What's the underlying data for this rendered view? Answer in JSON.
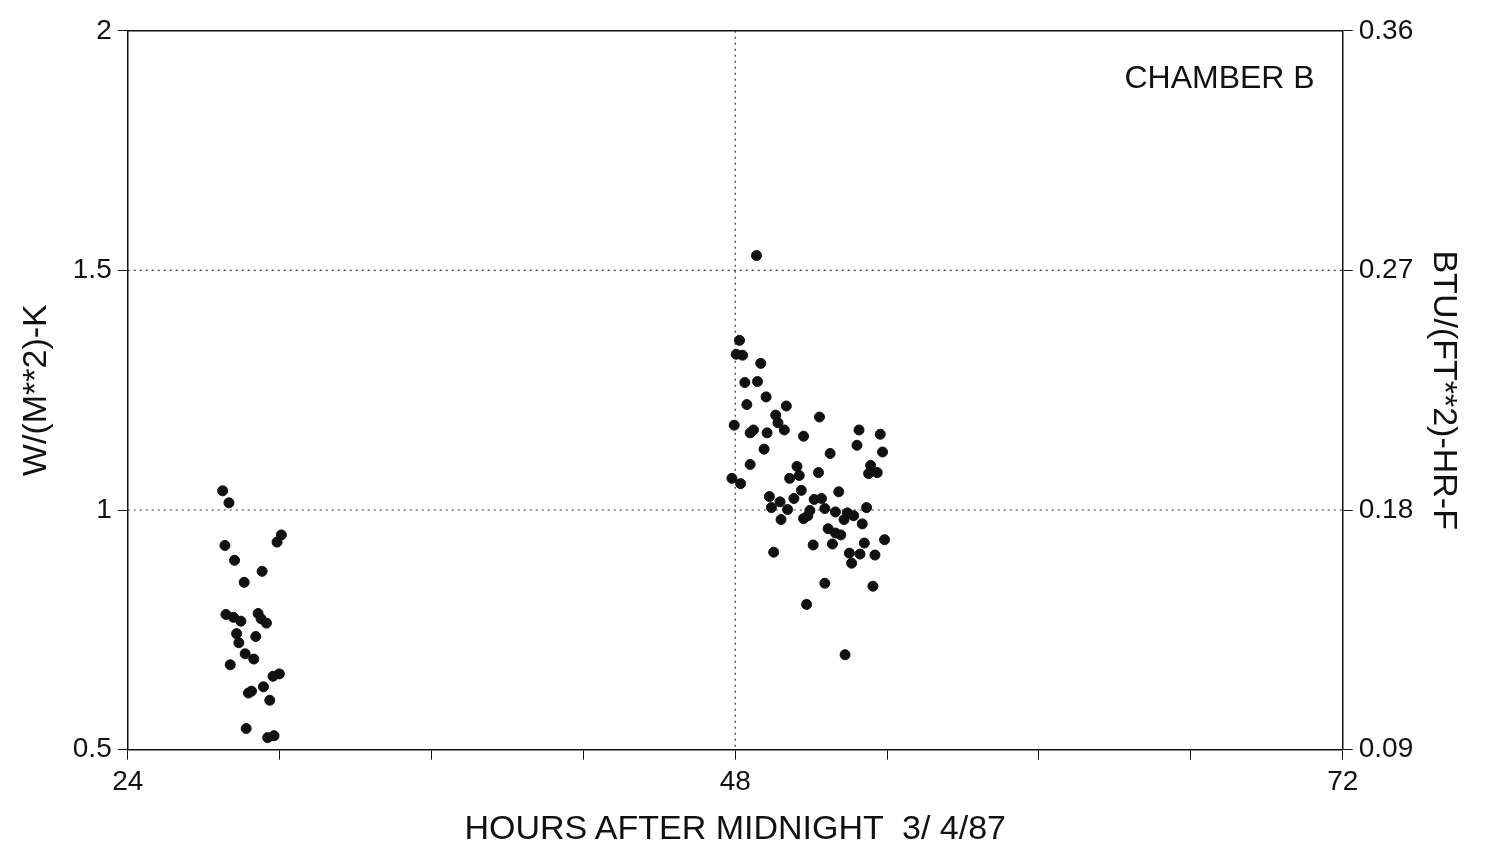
{
  "chart_data": {
    "type": "scatter",
    "xlabel": "HOURS AFTER MIDNIGHT  3/ 4/87",
    "ylabel": "W/(M**2)-K",
    "y2label": "BTU/(FT**2)-HR-F",
    "annotations": [
      "CHAMBER B"
    ],
    "xlim": [
      24,
      72
    ],
    "xticks": [
      24,
      {
        "value": 30,
        "label": null
      },
      {
        "value": 36,
        "label": null
      },
      {
        "value": 42,
        "label": null
      },
      48,
      {
        "value": 54,
        "label": null
      },
      {
        "value": 60,
        "label": null
      },
      {
        "value": 66,
        "label": null
      },
      72
    ],
    "ylim": [
      0.5,
      2
    ],
    "yticks": [
      0.5,
      1,
      1.5,
      2
    ],
    "y2lim": [
      0.09,
      0.36
    ],
    "y2ticks": [
      0.09,
      0.18,
      0.27,
      0.36
    ],
    "grid": false,
    "legend": false,
    "marker": "circle",
    "ref_lines": [
      {
        "axis": "x",
        "value": 48,
        "line_style": "dotted"
      },
      {
        "axis": "y",
        "value": 1,
        "line_style": "dotted"
      },
      {
        "axis": "y",
        "value": 1.5,
        "line_style": "dotted"
      }
    ],
    "series": [
      {
        "color": "#111111",
        "x": [
          27.75,
          28.0,
          30.07,
          29.9,
          27.84,
          28.22,
          29.31,
          28.6,
          27.88,
          28.18,
          28.47,
          29.15,
          29.27,
          29.48,
          28.3,
          28.39,
          29.06,
          28.64,
          28.98,
          28.05,
          29.99,
          29.74,
          29.36,
          28.89,
          28.77,
          29.61,
          28.68,
          29.53,
          29.78,
          48.84,
          48.17,
          48.04,
          48.29,
          49.01,
          48.38,
          48.88,
          48.46,
          49.22,
          50.02,
          49.6,
          47.96,
          49.69,
          49.94,
          51.33,
          48.59,
          48.72,
          49.26,
          50.7,
          52.89,
          53.73,
          49.14,
          52.81,
          53.82,
          51.75,
          48.59,
          50.44,
          53.35,
          51.29,
          50.15,
          50.53,
          53.27,
          53.61,
          47.87,
          48.21,
          50.61,
          52.09,
          49.35,
          50.32,
          49.77,
          51.12,
          51.41,
          49.43,
          50.07,
          50.95,
          51.54,
          53.19,
          51.96,
          52.43,
          50.87,
          50.7,
          52.68,
          52.3,
          49.81,
          53.02,
          51.67,
          52.17,
          51.96,
          53.9,
          53.1,
          51.08,
          51.84,
          49.52,
          52.51,
          52.93,
          53.52,
          52.6,
          51.54,
          53.44,
          50.82,
          52.34
        ],
        "values": [
          1.04,
          1.015,
          0.948,
          0.933,
          0.926,
          0.895,
          0.872,
          0.849,
          0.782,
          0.776,
          0.768,
          0.784,
          0.773,
          0.764,
          0.742,
          0.723,
          0.736,
          0.7,
          0.689,
          0.677,
          0.658,
          0.653,
          0.631,
          0.622,
          0.618,
          0.603,
          0.544,
          0.525,
          0.529,
          1.531,
          1.354,
          1.325,
          1.323,
          1.306,
          1.266,
          1.268,
          1.22,
          1.236,
          1.217,
          1.198,
          1.177,
          1.182,
          1.167,
          1.194,
          1.161,
          1.167,
          1.161,
          1.154,
          1.167,
          1.158,
          1.127,
          1.135,
          1.121,
          1.118,
          1.095,
          1.091,
          1.093,
          1.078,
          1.066,
          1.072,
          1.076,
          1.078,
          1.066,
          1.055,
          1.041,
          1.038,
          1.028,
          1.024,
          1.017,
          1.022,
          1.024,
          1.005,
          1.001,
          0.999,
          1.003,
          1.005,
          0.996,
          0.994,
          0.988,
          0.982,
          0.988,
          0.98,
          0.98,
          0.971,
          0.961,
          0.948,
          0.952,
          0.938,
          0.931,
          0.927,
          0.929,
          0.912,
          0.91,
          0.908,
          0.906,
          0.889,
          0.847,
          0.841,
          0.803,
          0.698
        ]
      }
    ]
  }
}
